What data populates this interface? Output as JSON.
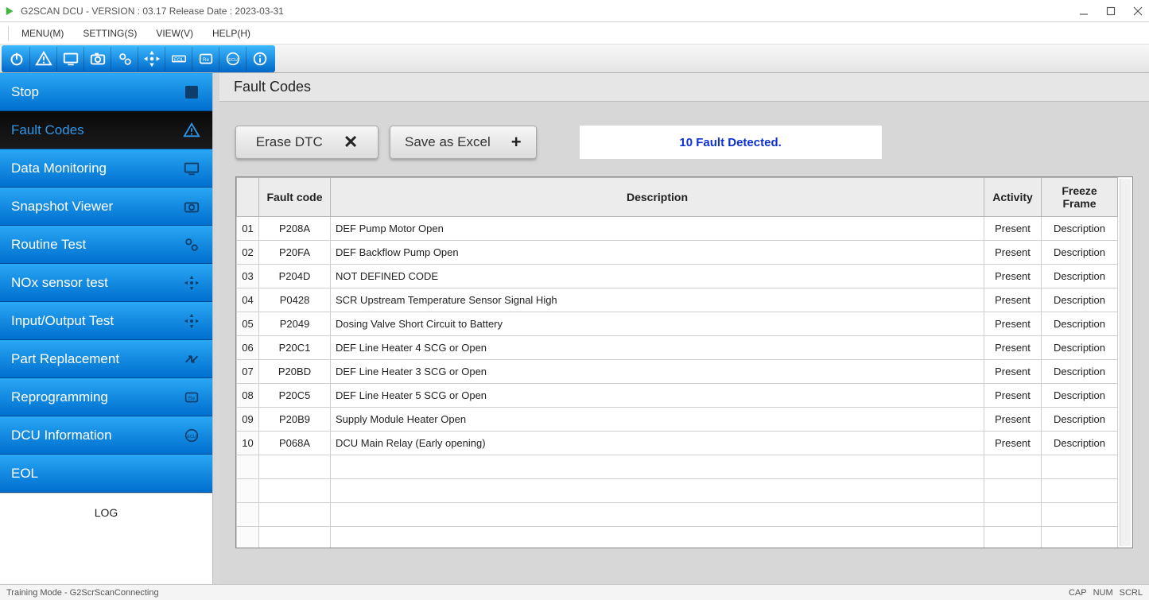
{
  "window": {
    "title": "G2SCAN DCU - VERSION : 03.17 Release Date : 2023-03-31"
  },
  "menubar": {
    "items": [
      "MENU(M)",
      "SETTING(S)",
      "VIEW(V)",
      "HELP(H)"
    ]
  },
  "toolbar": {
    "icons": [
      "power",
      "warn",
      "monitor",
      "camera",
      "gears",
      "arrows",
      "eol",
      "re",
      "ecu",
      "info"
    ]
  },
  "sidebar": {
    "items": [
      {
        "label": "Stop",
        "icon": "stop",
        "selected": false
      },
      {
        "label": "Fault Codes",
        "icon": "warn",
        "selected": true
      },
      {
        "label": "Data Monitoring",
        "icon": "monitor",
        "selected": false
      },
      {
        "label": "Snapshot Viewer",
        "icon": "camera",
        "selected": false
      },
      {
        "label": "Routine Test",
        "icon": "gears",
        "selected": false
      },
      {
        "label": "NOx sensor test",
        "icon": "arrows",
        "selected": false
      },
      {
        "label": "Input/Output Test",
        "icon": "arrows",
        "selected": false
      },
      {
        "label": "Part Replacement",
        "icon": "swap",
        "selected": false
      },
      {
        "label": "Reprogramming",
        "icon": "re",
        "selected": false
      },
      {
        "label": "DCU Information",
        "icon": "ecu",
        "selected": false
      },
      {
        "label": "EOL",
        "icon": "",
        "selected": false
      }
    ],
    "log_label": "LOG"
  },
  "page": {
    "title": "Fault Codes",
    "erase_label": "Erase DTC",
    "save_label": "Save as Excel",
    "status_text": "10 Fault Detected.",
    "table": {
      "columns": [
        "",
        "Fault code",
        "Description",
        "Activity",
        "Freeze Frame"
      ],
      "rows": [
        {
          "idx": "01",
          "code": "P208A",
          "desc": "DEF Pump Motor Open",
          "activity": "Present",
          "ff": "Description"
        },
        {
          "idx": "02",
          "code": "P20FA",
          "desc": "DEF Backflow Pump Open",
          "activity": "Present",
          "ff": "Description"
        },
        {
          "idx": "03",
          "code": "P204D",
          "desc": "NOT DEFINED CODE",
          "activity": "Present",
          "ff": "Description"
        },
        {
          "idx": "04",
          "code": "P0428",
          "desc": "SCR Upstream Temperature Sensor Signal High",
          "activity": "Present",
          "ff": "Description"
        },
        {
          "idx": "05",
          "code": "P2049",
          "desc": "Dosing Valve Short Circuit to Battery",
          "activity": "Present",
          "ff": "Description"
        },
        {
          "idx": "06",
          "code": "P20C1",
          "desc": "DEF Line Heater 4 SCG or Open",
          "activity": "Present",
          "ff": "Description"
        },
        {
          "idx": "07",
          "code": "P20BD",
          "desc": "DEF Line Heater 3 SCG or Open",
          "activity": "Present",
          "ff": "Description"
        },
        {
          "idx": "08",
          "code": "P20C5",
          "desc": "DEF Line Heater 5 SCG or Open",
          "activity": "Present",
          "ff": "Description"
        },
        {
          "idx": "09",
          "code": "P20B9",
          "desc": "Supply Module Heater Open",
          "activity": "Present",
          "ff": "Description"
        },
        {
          "idx": "10",
          "code": "P068A",
          "desc": "DCU Main Relay (Early opening)",
          "activity": "Present",
          "ff": "Description"
        }
      ],
      "empty_rows_after": 4
    }
  },
  "statusbar": {
    "left": "Training Mode - G2ScrScanConnecting",
    "right": [
      "CAP",
      "NUM",
      "SCRL"
    ]
  },
  "colors": {
    "sidebar_grad_top": "#29a7f5",
    "sidebar_grad_bot": "#006fce",
    "selected_bg": "#0a0a0a",
    "selected_text": "#2f96e8",
    "status_text": "#0d2fd6",
    "content_bg": "#d7d7d7"
  }
}
